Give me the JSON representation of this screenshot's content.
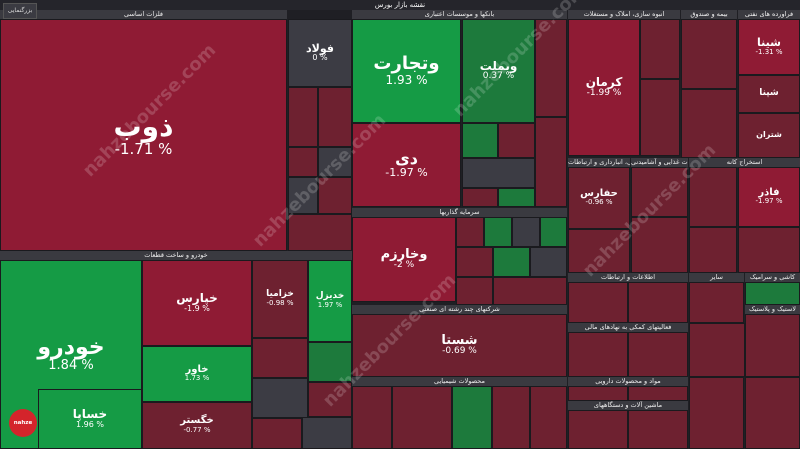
{
  "header": {
    "title": "نقشه بازار بورس",
    "zoom_label": "بزرگنمایی"
  },
  "watermark": "nahzebourse.com",
  "colors": {
    "strong_red": "#8f1b34",
    "red": "#6e2130",
    "neutral": "#3c3c44",
    "green": "#1d7a3c",
    "strong_green": "#159b45"
  },
  "chart_data": {
    "type": "heatmap",
    "sectors": [
      "فلزات اساسی",
      "بانکها و موسسات اعتباری",
      "انبوه سازی، املاک و مستغلات",
      "بیمه و صندوق",
      "فراورده های نفتی",
      "خودرو و ساخت قطعات",
      "سرمایه گذاریها",
      "شرکتهای چند رشته ای صنعتی",
      "محصولات شیمیایی",
      "حمل ونقل، انبارداری و ارتباطات",
      "محصولات غذایی و آشامیدنی",
      "استخراج کانه",
      "سایر",
      "اطلاعات و ارتباطات",
      "فعالیتهای کمکی به نهادهای مالی",
      "مواد و محصولات دارویی",
      "ماشین آلات و دستگاههای",
      "کاشی و سرامیک",
      "لاستیک و پلاستیک"
    ],
    "tiles": [
      {
        "symbol": "ذوب",
        "change": -1.71
      },
      {
        "symbol": "فولاد",
        "change": 0
      },
      {
        "symbol": "وتجارت",
        "change": 1.93
      },
      {
        "symbol": "وبملت",
        "change": 0.37
      },
      {
        "symbol": "دی",
        "change": -1.97
      },
      {
        "symbol": "کرمان",
        "change": -1.99
      },
      {
        "symbol": "شینا",
        "change": -1.31
      },
      {
        "symbol": "خودرو",
        "change": 1.84
      },
      {
        "symbol": "خپارس",
        "change": -1.9
      },
      {
        "symbol": "خاور",
        "change": 1.73
      },
      {
        "symbol": "خزامیا",
        "change": -0.98
      },
      {
        "symbol": "خدیزل",
        "change": 1.97
      },
      {
        "symbol": "خگستر",
        "change": -0.77
      },
      {
        "symbol": "خساپا",
        "change": 1.96
      },
      {
        "symbol": "وخارزم",
        "change": -2
      },
      {
        "symbol": "شستا",
        "change": -0.69
      },
      {
        "symbol": "حفارس",
        "change": -0.96
      },
      {
        "symbol": "فاذر",
        "change": -1.97
      },
      {
        "symbol": "شپنا",
        "change": null
      },
      {
        "symbol": "شتران",
        "change": null
      }
    ],
    "scale": "red negative, green positive, dark neutral"
  }
}
